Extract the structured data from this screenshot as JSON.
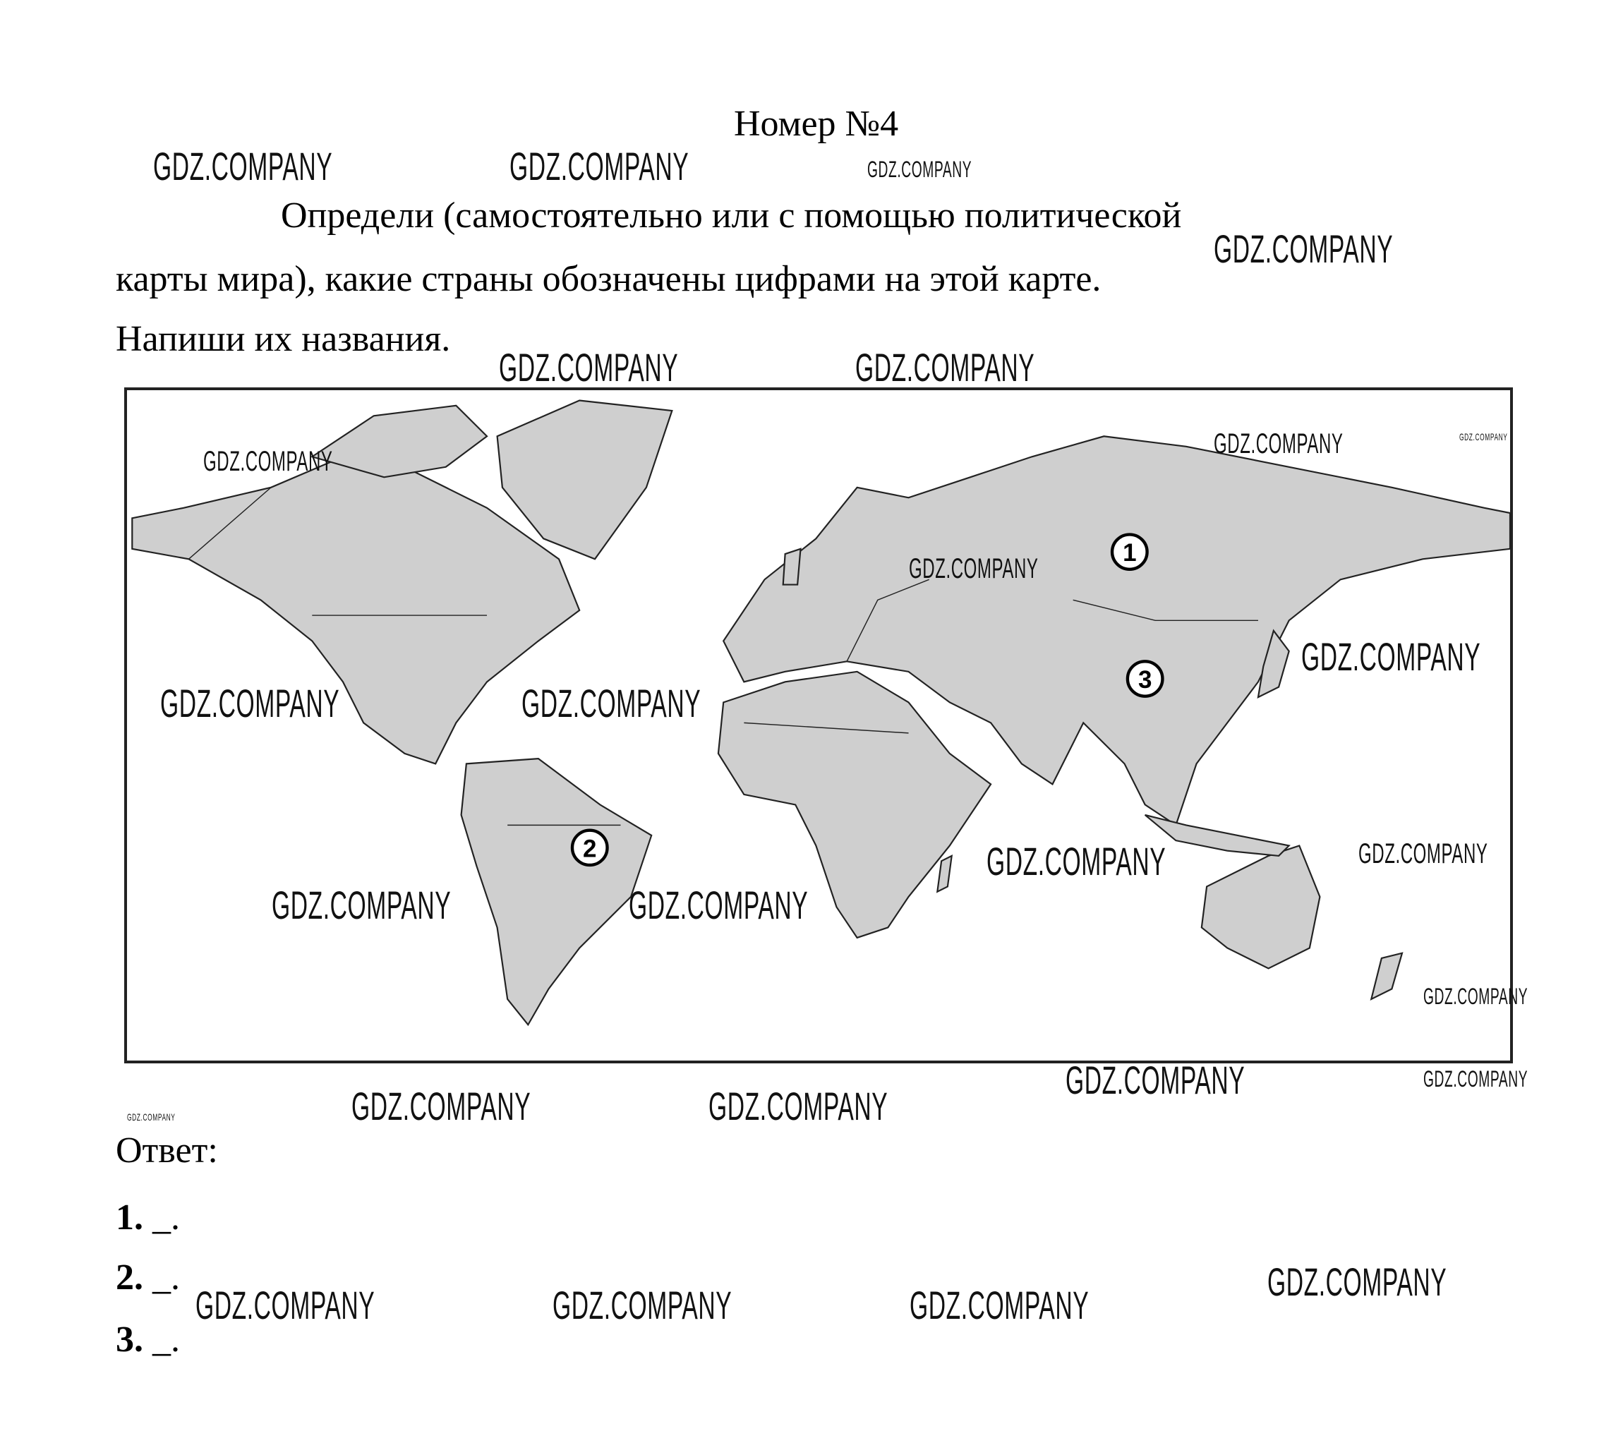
{
  "title": "Номер №4",
  "task": {
    "line1": "Определи (самостоятельно или с помощью политической",
    "line2": "карты мира), какие страны обозначены цифрами на этой карте.",
    "line3": "Напиши их названия."
  },
  "map": {
    "markers": [
      {
        "label": "1"
      },
      {
        "label": "2"
      },
      {
        "label": "3"
      }
    ],
    "land_color": "#cfcfcf",
    "border_color": "#222222"
  },
  "answer": {
    "heading": "Ответ:",
    "items": [
      {
        "number": "1.",
        "value": "_."
      },
      {
        "number": "2.",
        "value": "_."
      },
      {
        "number": "3.",
        "value": "_."
      }
    ]
  },
  "watermark": {
    "text": "GDZ.COMPANY"
  }
}
